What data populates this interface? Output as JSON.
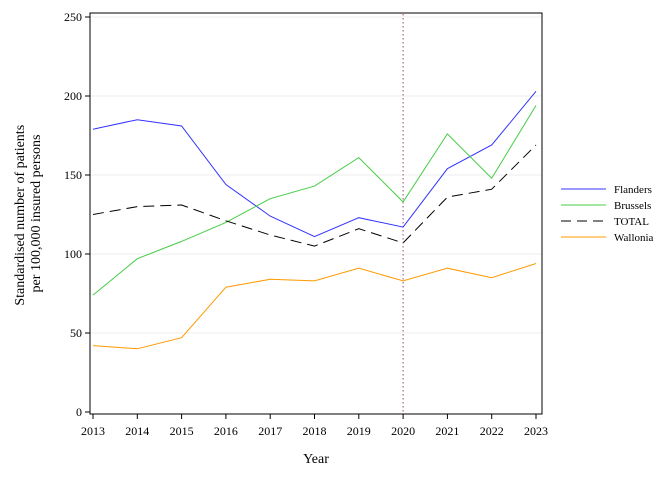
{
  "chart_data": {
    "type": "line",
    "xlabel": "Year",
    "ylabel_lines": [
      "Standardised number of patients",
      "per 100,000 insured persons"
    ],
    "x": [
      2013,
      2014,
      2015,
      2016,
      2017,
      2018,
      2019,
      2020,
      2021,
      2022,
      2023
    ],
    "xlim": [
      2013,
      2023
    ],
    "ylim": [
      0,
      250
    ],
    "yticks": [
      0,
      50,
      100,
      150,
      200,
      250
    ],
    "grid": "horizontal",
    "reference_line_x": 2020,
    "legend_position": "right",
    "series": [
      {
        "name": "Flanders",
        "color": "#3333ff",
        "dash": "solid",
        "values": [
          179,
          185,
          181,
          144,
          124,
          111,
          123,
          117,
          154,
          169,
          203
        ]
      },
      {
        "name": "Brussels",
        "color": "#44cc44",
        "dash": "solid",
        "values": [
          74,
          97,
          108,
          120,
          135,
          143,
          161,
          133,
          176,
          148,
          194
        ]
      },
      {
        "name": "TOTAL",
        "color": "#000000",
        "dash": "dashed",
        "values": [
          125,
          130,
          131,
          121,
          112,
          105,
          116,
          107,
          136,
          141,
          169
        ]
      },
      {
        "name": "Wallonia",
        "color": "#ff9900",
        "dash": "solid",
        "values": [
          42,
          40,
          47,
          79,
          84,
          83,
          91,
          83,
          91,
          85,
          94
        ]
      }
    ]
  }
}
